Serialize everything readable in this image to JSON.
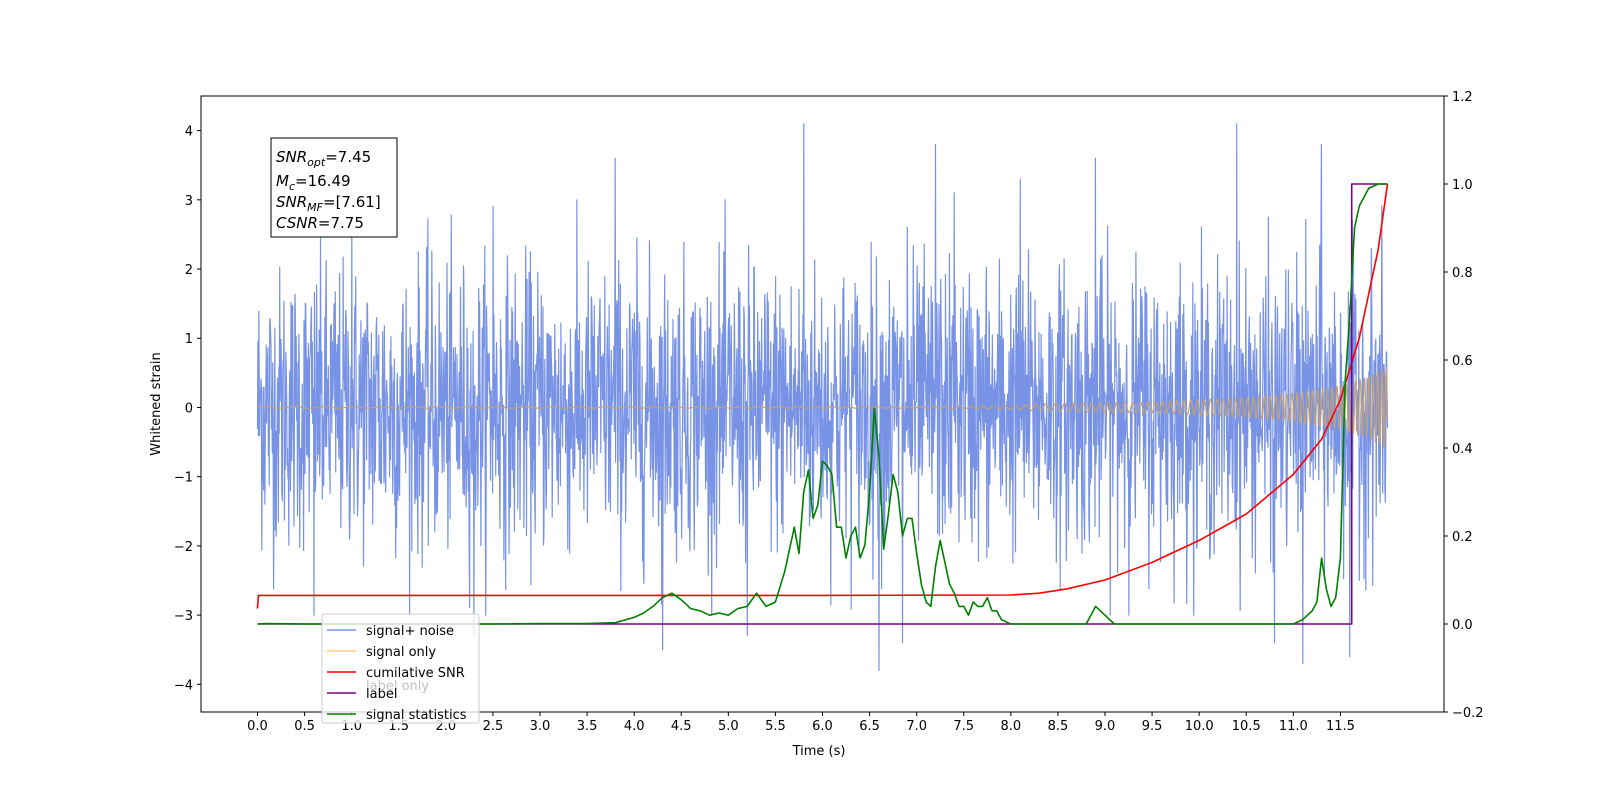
{
  "chart_data": {
    "type": "line",
    "xlabel": "Time (s)",
    "ylabel_left": "Whitened strain",
    "ylabel_right": "",
    "xlim": [
      -0.6,
      12.6
    ],
    "ylim_left": [
      -4.4,
      4.5
    ],
    "ylim_right": [
      -0.2,
      1.2
    ],
    "xticks": [
      "0.0",
      "0.5",
      "1.0",
      "1.5",
      "2.0",
      "2.5",
      "3.0",
      "3.5",
      "4.0",
      "4.5",
      "5.0",
      "5.5",
      "6.0",
      "6.5",
      "7.0",
      "7.5",
      "8.0",
      "8.5",
      "9.0",
      "9.5",
      "10.0",
      "10.5",
      "11.0",
      "11.5"
    ],
    "yticks_left": [
      "4",
      "3",
      "2",
      "1",
      "0",
      "−1",
      "−2",
      "−3",
      "−4"
    ],
    "yticks_right": [
      "1.2",
      "1.0",
      "0.8",
      "0.6",
      "0.4",
      "0.2",
      "0.0",
      "−0.2"
    ],
    "grid": false,
    "legend_position": "lower-left",
    "legend": [
      {
        "label": "signal+ noise",
        "color": "#7893e6"
      },
      {
        "label": "signal only",
        "color": "#ffcc80"
      },
      {
        "label": "cumilative SNR",
        "color": "#ff0000"
      },
      {
        "label": "label",
        "color": "#800080"
      },
      {
        "label": "signal statistics",
        "color": "#008000"
      }
    ],
    "legend_overlap_text": [
      "label only"
    ],
    "annotation": {
      "snr_opt": {
        "symbol": "SNR",
        "sub": "opt",
        "value": "=7.45"
      },
      "mc": {
        "symbol": "M",
        "sub": "c",
        "value": "=16.49"
      },
      "snr_mf": {
        "symbol": "SNR",
        "sub": "MF",
        "value": "=[7.61]"
      },
      "csnr": {
        "symbol": "CSNR",
        "sub": "",
        "value": "=7.75"
      }
    },
    "series": [
      {
        "name": "signal+ noise",
        "axis": "left",
        "color": "#7893e6",
        "description_type": "noise",
        "x_range": [
          0.0,
          12.0
        ],
        "std": 1.0,
        "peaks": [
          [
            0.6,
            -3.0
          ],
          [
            1.0,
            2.7
          ],
          [
            2.3,
            -3.3
          ],
          [
            2.5,
            2.9
          ],
          [
            3.8,
            3.6
          ],
          [
            4.3,
            -3.5
          ],
          [
            5.2,
            -3.3
          ],
          [
            5.8,
            4.1
          ],
          [
            6.6,
            -3.8
          ],
          [
            6.85,
            -3.4
          ],
          [
            6.9,
            2.6
          ],
          [
            7.2,
            3.8
          ],
          [
            7.4,
            3.1
          ],
          [
            8.1,
            3.3
          ],
          [
            8.9,
            3.6
          ],
          [
            10.4,
            4.1
          ],
          [
            10.8,
            -3.4
          ],
          [
            11.3,
            3.8
          ],
          [
            11.1,
            -3.7
          ],
          [
            11.6,
            -3.6
          ]
        ]
      },
      {
        "name": "signal only",
        "axis": "left",
        "color": "#c2a176",
        "envelope": [
          [
            0.0,
            0.01
          ],
          [
            7.0,
            0.01
          ],
          [
            8.0,
            0.03
          ],
          [
            8.5,
            0.06
          ],
          [
            9.0,
            0.07
          ],
          [
            9.5,
            0.08
          ],
          [
            10.0,
            0.11
          ],
          [
            10.5,
            0.14
          ],
          [
            11.0,
            0.2
          ],
          [
            11.5,
            0.32
          ],
          [
            11.8,
            0.45
          ],
          [
            12.0,
            0.6
          ]
        ]
      },
      {
        "name": "cumilative SNR",
        "axis": "right",
        "color": "#ff0000",
        "x": [
          0.0,
          0.01,
          3.0,
          6.0,
          8.0,
          8.3,
          8.6,
          9.0,
          9.5,
          10.0,
          10.5,
          11.0,
          11.3,
          11.5,
          11.7,
          11.9,
          12.0
        ],
        "y": [
          0.035,
          0.065,
          0.065,
          0.065,
          0.066,
          0.07,
          0.08,
          0.1,
          0.14,
          0.19,
          0.25,
          0.34,
          0.42,
          0.51,
          0.65,
          0.85,
          1.0
        ]
      },
      {
        "name": "label",
        "axis": "right",
        "color": "#800080",
        "x": [
          0.0,
          11.55,
          11.55,
          11.62,
          11.62,
          12.0
        ],
        "y": [
          0.0,
          0.0,
          0.0,
          0.0,
          1.0,
          1.0
        ]
      },
      {
        "name": "signal statistics",
        "axis": "right",
        "color": "#008000",
        "x": [
          0.0,
          0.1,
          0.5,
          1.0,
          1.5,
          2.0,
          2.5,
          3.0,
          3.5,
          3.8,
          4.0,
          4.1,
          4.2,
          4.3,
          4.4,
          4.5,
          4.6,
          4.7,
          4.8,
          4.9,
          5.0,
          5.1,
          5.2,
          5.3,
          5.4,
          5.5,
          5.6,
          5.7,
          5.75,
          5.8,
          5.85,
          5.9,
          5.95,
          6.0,
          6.05,
          6.1,
          6.15,
          6.2,
          6.25,
          6.3,
          6.35,
          6.4,
          6.45,
          6.5,
          6.55,
          6.6,
          6.65,
          6.7,
          6.75,
          6.8,
          6.85,
          6.9,
          6.95,
          7.0,
          7.05,
          7.1,
          7.15,
          7.2,
          7.25,
          7.3,
          7.35,
          7.4,
          7.45,
          7.5,
          7.55,
          7.6,
          7.65,
          7.7,
          7.75,
          7.8,
          7.85,
          7.9,
          7.95,
          8.0,
          8.1,
          8.2,
          8.4,
          8.6,
          8.8,
          8.9,
          9.0,
          9.1,
          9.2,
          9.4,
          9.6,
          10.0,
          10.5,
          11.0,
          11.1,
          11.2,
          11.25,
          11.3,
          11.35,
          11.4,
          11.45,
          11.5,
          11.55,
          11.6,
          11.65,
          11.7,
          11.75,
          11.8,
          11.9,
          12.0
        ],
        "y": [
          0.0,
          0.001,
          0.0,
          0.0,
          0.0,
          0.0,
          0.0,
          0.001,
          0.001,
          0.003,
          0.015,
          0.025,
          0.04,
          0.06,
          0.07,
          0.055,
          0.035,
          0.03,
          0.02,
          0.025,
          0.02,
          0.035,
          0.04,
          0.07,
          0.04,
          0.05,
          0.12,
          0.22,
          0.16,
          0.3,
          0.35,
          0.24,
          0.27,
          0.37,
          0.36,
          0.34,
          0.22,
          0.22,
          0.15,
          0.2,
          0.22,
          0.15,
          0.18,
          0.3,
          0.49,
          0.38,
          0.17,
          0.25,
          0.34,
          0.3,
          0.2,
          0.24,
          0.24,
          0.16,
          0.09,
          0.05,
          0.04,
          0.13,
          0.19,
          0.14,
          0.09,
          0.07,
          0.04,
          0.04,
          0.02,
          0.05,
          0.04,
          0.04,
          0.06,
          0.03,
          0.03,
          0.01,
          0.005,
          0.0,
          0.0,
          0.0,
          0.0,
          0.0,
          0.0,
          0.04,
          0.02,
          0.0,
          0.0,
          0.0,
          0.0,
          0.0,
          0.0,
          0.0,
          0.01,
          0.03,
          0.05,
          0.15,
          0.08,
          0.04,
          0.06,
          0.15,
          0.55,
          0.7,
          0.9,
          0.95,
          0.97,
          0.99,
          1.0,
          1.0
        ]
      }
    ]
  }
}
